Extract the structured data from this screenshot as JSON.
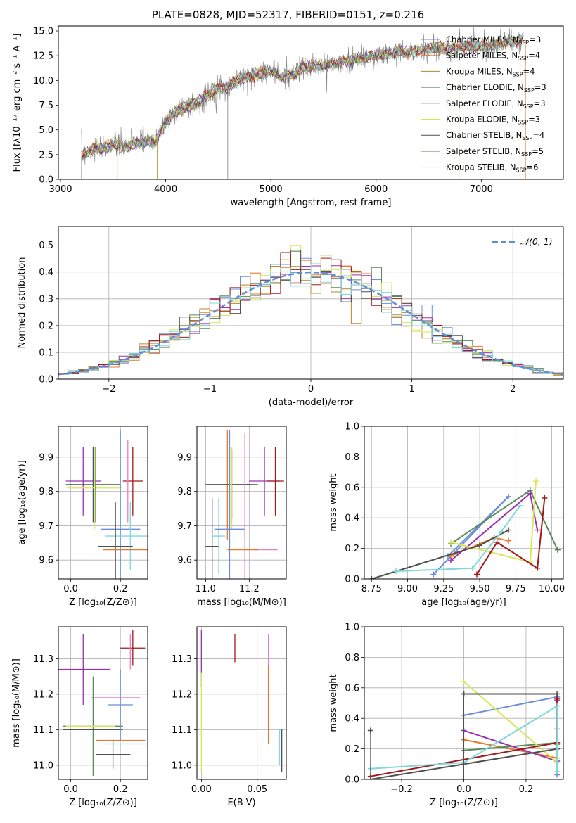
{
  "figure_title": "PLATE=0828, MJD=52317, FIBERID=0151, z=0.216",
  "colors": {
    "grid": "#b0b0b0",
    "normal_curve": "#5b8ed6",
    "chabrier_miles": "#6a8fd8",
    "salpeter_miles": "#e87830",
    "kroupa_miles": "#b08a2a",
    "chabrier_elodie": "#5a8a5a",
    "salpeter_elodie": "#9a30b0",
    "kroupa_elodie": "#d6e85a",
    "chabrier_stelib": "#505050",
    "salpeter_stelib": "#a01818",
    "kroupa_stelib": "#80d8d8",
    "pink": "#e880c0"
  },
  "chart_data": [
    {
      "id": "spectrum",
      "type": "line",
      "title": "PLATE=0828, MJD=52317, FIBERID=0151, z=0.216",
      "xlabel": "wavelength [Angstrom, rest frame]",
      "ylabel": "Flux [fλ10⁻¹⁷ erg cm⁻² s⁻¹ A⁻¹]",
      "xlim": [
        2980,
        7780
      ],
      "ylim": [
        0,
        15.5
      ],
      "xticks": [
        3000,
        4000,
        5000,
        6000,
        7000
      ],
      "yticks": [
        0.0,
        2.5,
        5.0,
        7.5,
        10.0,
        12.5,
        15.0
      ],
      "grid": false,
      "legend_position": "top-right",
      "legend": [
        "Chabrier MILES, N_SSP=3",
        "Salpeter MILES, N_SSP=4",
        "Kroupa MILES, N_SSP=4",
        "Chabrier ELODIE, N_SSP=3",
        "Salpeter ELODIE, N_SSP=3",
        "Kroupa ELODIE, N_SSP=3",
        "Chabrier STELIB, N_SSP=4",
        "Salpeter STELIB, N_SSP=5",
        "Kroupa STELIB, N_SSP=6"
      ],
      "continuum": {
        "x": [
          3200,
          3300,
          3400,
          3500,
          3600,
          3700,
          3800,
          3900,
          4000,
          4100,
          4200,
          4300,
          4400,
          4500,
          4600,
          4700,
          4800,
          4900,
          5000,
          5100,
          5200,
          5300,
          5400,
          5500,
          5600,
          5700,
          5800,
          5900,
          6000,
          6100,
          6200,
          6300,
          6400,
          6500,
          6600,
          6700,
          6800,
          6900,
          7000,
          7100,
          7200,
          7300,
          7400
        ],
        "y": [
          2.4,
          3.0,
          3.2,
          3.5,
          3.3,
          3.6,
          3.8,
          3.7,
          5.8,
          6.9,
          7.4,
          7.7,
          8.6,
          9.2,
          9.4,
          10.2,
          10.4,
          10.7,
          11.0,
          10.3,
          10.6,
          11.2,
          11.4,
          11.5,
          11.7,
          11.9,
          12.1,
          12.3,
          12.5,
          12.6,
          12.9,
          12.8,
          13.0,
          13.2,
          13.3,
          13.1,
          13.4,
          13.5,
          13.3,
          13.6,
          13.8,
          13.9,
          14.1
        ]
      }
    },
    {
      "id": "residuals",
      "type": "line",
      "xlabel": "(data-model)/error",
      "ylabel": "Normed distribution",
      "xlim": [
        -2.5,
        2.5
      ],
      "ylim": [
        0,
        0.57
      ],
      "xticks": [
        -2,
        -1,
        0,
        1,
        2
      ],
      "yticks": [
        0.0,
        0.1,
        0.2,
        0.3,
        0.4,
        0.5
      ],
      "grid": true,
      "legend_position": "top-right",
      "legend": [
        "𝒩(0, 1)"
      ],
      "normal": {
        "mu": 0,
        "sigma": 1
      }
    },
    {
      "id": "age_vs_Z",
      "type": "scatter",
      "xlabel": "Z [log₁₀(Z/Z⊙)]",
      "ylabel": "age  [log₁₀(age/yr)]",
      "xlim": [
        -0.05,
        0.31
      ],
      "ylim": [
        9.545,
        9.99
      ],
      "xticks": [
        0.0,
        0.2
      ],
      "yticks": [
        9.6,
        9.7,
        9.8,
        9.9
      ],
      "grid": true,
      "points": [
        {
          "x": 0.05,
          "y": 9.83,
          "xerr": 0.07,
          "yerr": 0.1,
          "c": "salpeter_elodie"
        },
        {
          "x": 0.09,
          "y": 9.82,
          "xerr": 0.11,
          "yerr": 0.11,
          "c": "chabrier_stelib"
        },
        {
          "x": 0.095,
          "y": 9.81,
          "xerr": 0.11,
          "yerr": 0.12,
          "c": "kroupa_elodie"
        },
        {
          "x": 0.1,
          "y": 9.82,
          "xerr": 0.0,
          "yerr": 0.11,
          "c": "chabrier_elodie"
        },
        {
          "x": 0.25,
          "y": 9.83,
          "xerr": 0.04,
          "yerr": 0.1,
          "c": "salpeter_stelib"
        },
        {
          "x": 0.23,
          "y": 9.83,
          "xerr": 0.0,
          "yerr": 0.12,
          "c": "pink"
        },
        {
          "x": 0.2,
          "y": 9.69,
          "xerr": 0.08,
          "yerr": 0.29,
          "c": "chabrier_miles"
        },
        {
          "x": 0.24,
          "y": 9.67,
          "xerr": 0.1,
          "yerr": 0.1,
          "c": "kroupa_stelib"
        },
        {
          "x": 0.18,
          "y": 9.64,
          "xerr": 0.07,
          "yerr": 0.13,
          "c": "chabrier_stelib"
        },
        {
          "x": 0.22,
          "y": 9.63,
          "xerr": 0.09,
          "yerr": 0.0,
          "c": "salpeter_miles"
        }
      ]
    },
    {
      "id": "age_vs_mass",
      "type": "scatter",
      "xlabel": "mass [log₁₀(M/M⊙)]",
      "ylabel": "",
      "xlim": [
        10.96,
        11.37
      ],
      "ylim": [
        9.545,
        9.99
      ],
      "xticks": [
        11.0,
        11.2
      ],
      "yticks": [
        9.6,
        9.7,
        9.8,
        9.9
      ],
      "grid": true,
      "points": [
        {
          "x": 11.03,
          "y": 9.64,
          "xerr": 0.03,
          "yerr": 0.14,
          "c": "chabrier_stelib"
        },
        {
          "x": 11.06,
          "y": 9.67,
          "xerr": 0.03,
          "yerr": 0.11,
          "c": "kroupa_stelib"
        },
        {
          "x": 11.1,
          "y": 9.82,
          "xerr": 0.1,
          "yerr": 0.16,
          "c": "salpeter_miles"
        },
        {
          "x": 11.11,
          "y": 9.82,
          "xerr": 0.1,
          "yerr": 0.11,
          "c": "chabrier_elodie"
        },
        {
          "x": 11.12,
          "y": 9.82,
          "xerr": 0.12,
          "yerr": 0.1,
          "c": "chabrier_stelib"
        },
        {
          "x": 11.12,
          "y": 9.81,
          "xerr": 0.0,
          "yerr": 0.12,
          "c": "kroupa_elodie"
        },
        {
          "x": 11.11,
          "y": 9.69,
          "xerr": 0.07,
          "yerr": 0.29,
          "c": "chabrier_miles"
        },
        {
          "x": 11.18,
          "y": 9.69,
          "xerr": 0.0,
          "yerr": 0.28,
          "c": "pink"
        },
        {
          "x": 11.27,
          "y": 9.83,
          "xerr": 0.07,
          "yerr": 0.1,
          "c": "salpeter_elodie"
        },
        {
          "x": 11.32,
          "y": 9.83,
          "xerr": 0.04,
          "yerr": 0.1,
          "c": "salpeter_stelib"
        },
        {
          "x": 11.28,
          "y": 9.63,
          "xerr": 0.05,
          "yerr": 0.0,
          "c": "pink"
        },
        {
          "x": 11.17,
          "y": 9.63,
          "xerr": 0.07,
          "yerr": 0.0,
          "c": "salpeter_miles"
        }
      ]
    },
    {
      "id": "weight_vs_age",
      "type": "line",
      "xlabel": "age  [log₁₀(age/yr)]",
      "ylabel": "mass weight",
      "xlim": [
        8.7,
        10.08
      ],
      "ylim": [
        0,
        1
      ],
      "xticks": [
        8.75,
        9.0,
        9.25,
        9.5,
        9.75,
        10.0
      ],
      "yticks": [
        0.0,
        0.2,
        0.4,
        0.6,
        0.8,
        1.0
      ],
      "grid": true,
      "series": [
        {
          "c": "chabrier_miles",
          "x": [
            9.18,
            9.7,
            9.28
          ],
          "y": [
            0.03,
            0.54,
            0.15
          ]
        },
        {
          "c": "salpeter_miles",
          "x": [
            9.3,
            9.6,
            9.7
          ],
          "y": [
            0.15,
            0.27,
            0.25
          ]
        },
        {
          "c": "chabrier_elodie",
          "x": [
            9.3,
            9.85,
            10.04
          ],
          "y": [
            0.23,
            0.58,
            0.19
          ]
        },
        {
          "c": "salpeter_elodie",
          "x": [
            9.3,
            9.85,
            9.9
          ],
          "y": [
            0.12,
            0.56,
            0.32
          ]
        },
        {
          "c": "kroupa_elodie",
          "x": [
            9.3,
            9.85,
            9.89
          ],
          "y": [
            0.24,
            0.11,
            0.64
          ]
        },
        {
          "c": "chabrier_stelib",
          "x": [
            8.75,
            9.5,
            9.7
          ],
          "y": [
            0.0,
            0.22,
            0.32
          ]
        },
        {
          "c": "salpeter_stelib",
          "x": [
            9.48,
            9.62,
            9.9,
            9.95
          ],
          "y": [
            0.03,
            0.24,
            0.07,
            0.53
          ]
        },
        {
          "c": "kroupa_stelib",
          "x": [
            8.92,
            9.45,
            9.65,
            9.78
          ],
          "y": [
            0.05,
            0.07,
            0.31,
            0.48
          ]
        }
      ]
    },
    {
      "id": "mass_vs_Z",
      "type": "scatter",
      "xlabel": "Z [log₁₀(Z/Z⊙)]",
      "ylabel": "mass [log₁₀(M/M⊙)]",
      "xlim": [
        -0.05,
        0.31
      ],
      "ylim": [
        10.96,
        11.39
      ],
      "xticks": [
        0.0,
        0.2
      ],
      "yticks": [
        11.0,
        11.1,
        11.2,
        11.3
      ],
      "grid": true,
      "points": [
        {
          "x": 0.05,
          "y": 11.27,
          "xerr": 0.11,
          "yerr": 0.1,
          "c": "salpeter_elodie"
        },
        {
          "x": 0.25,
          "y": 11.33,
          "xerr": 0.05,
          "yerr": 0.05,
          "c": "salpeter_stelib"
        },
        {
          "x": 0.24,
          "y": 11.32,
          "xerr": 0.0,
          "yerr": 0.05,
          "c": "pink"
        },
        {
          "x": 0.18,
          "y": 11.19,
          "xerr": 0.1,
          "yerr": 0.0,
          "c": "pink"
        },
        {
          "x": 0.09,
          "y": 11.11,
          "xerr": 0.12,
          "yerr": 0.14,
          "c": "chabrier_elodie"
        },
        {
          "x": 0.08,
          "y": 11.11,
          "xerr": 0.1,
          "yerr": 0.0,
          "c": "kroupa_elodie"
        },
        {
          "x": 0.09,
          "y": 11.1,
          "xerr": 0.12,
          "yerr": 0.0,
          "c": "chabrier_stelib"
        },
        {
          "x": 0.2,
          "y": 11.17,
          "xerr": 0.05,
          "yerr": 0.1,
          "c": "chabrier_miles"
        },
        {
          "x": 0.2,
          "y": 11.07,
          "xerr": 0.1,
          "yerr": 0.0,
          "c": "salpeter_miles"
        },
        {
          "x": 0.22,
          "y": 11.06,
          "xerr": 0.1,
          "yerr": 0.0,
          "c": "kroupa_stelib"
        },
        {
          "x": 0.17,
          "y": 11.03,
          "xerr": 0.07,
          "yerr": 0.04,
          "c": "chabrier_stelib"
        }
      ]
    },
    {
      "id": "mass_vs_ebv",
      "type": "scatter",
      "xlabel": "E(B-V)",
      "ylabel": "",
      "xlim": [
        -0.004,
        0.076
      ],
      "ylim": [
        10.96,
        11.39
      ],
      "xticks": [
        0.0,
        0.05
      ],
      "yticks": [
        11.0,
        11.1,
        11.2,
        11.3
      ],
      "grid": true,
      "points": [
        {
          "x": 0.0,
          "y": 11.3,
          "xerr": 0.0,
          "yerr": 0.08,
          "c": "salpeter_elodie"
        },
        {
          "x": 0.0,
          "y": 11.12,
          "xerr": 0.0,
          "yerr": 0.14,
          "c": "kroupa_elodie"
        },
        {
          "x": 0.03,
          "y": 11.33,
          "xerr": 0.0,
          "yerr": 0.04,
          "c": "salpeter_stelib"
        },
        {
          "x": 0.06,
          "y": 11.32,
          "xerr": 0.0,
          "yerr": 0.05,
          "c": "pink"
        },
        {
          "x": 0.06,
          "y": 11.17,
          "xerr": 0.0,
          "yerr": 0.11,
          "c": "salpeter_miles"
        },
        {
          "x": 0.07,
          "y": 11.05,
          "xerr": 0.0,
          "yerr": 0.05,
          "c": "kroupa_stelib"
        },
        {
          "x": 0.072,
          "y": 11.04,
          "xerr": 0.0,
          "yerr": 0.06,
          "c": "chabrier_stelib"
        }
      ]
    },
    {
      "id": "weight_vs_Z",
      "type": "line",
      "xlabel": "Z [log₁₀(Z/Z⊙)]",
      "ylabel": "mass weight",
      "xlim": [
        -0.32,
        0.32
      ],
      "ylim": [
        0,
        1
      ],
      "xticks": [
        -0.2,
        0.0,
        0.2
      ],
      "yticks": [
        0.0,
        0.2,
        0.4,
        0.6,
        0.8,
        1.0
      ],
      "grid": true,
      "series": [
        {
          "c": "chabrier_miles",
          "x": [
            0.0,
            0.3,
            0.3
          ],
          "y": [
            0.42,
            0.54,
            0.03
          ]
        },
        {
          "c": "salpeter_miles",
          "x": [
            0.0,
            0.3,
            0.3
          ],
          "y": [
            0.26,
            0.14,
            0.33
          ]
        },
        {
          "c": "chabrier_elodie",
          "x": [
            0.0,
            0.3,
            0.3
          ],
          "y": [
            0.19,
            0.24,
            0.23
          ]
        },
        {
          "c": "salpeter_elodie",
          "x": [
            0.0,
            0.3,
            0.3
          ],
          "y": [
            0.32,
            0.12,
            0.52
          ]
        },
        {
          "c": "kroupa_elodie",
          "x": [
            0.0,
            0.3,
            0.3
          ],
          "y": [
            0.64,
            0.11,
            0.24
          ]
        },
        {
          "c": "chabrier_stelib",
          "x": [
            -0.3,
            0.3,
            0.3,
            0.0
          ],
          "y": [
            0.0,
            0.2,
            0.56,
            0.56
          ]
        },
        {
          "c": "salpeter_stelib",
          "x": [
            -0.3,
            0.3,
            0.3
          ],
          "y": [
            0.02,
            0.24,
            0.53
          ]
        },
        {
          "c": "kroupa_stelib",
          "x": [
            -0.3,
            0.0,
            0.3,
            0.3
          ],
          "y": [
            0.07,
            0.11,
            0.48,
            0.05
          ]
        }
      ],
      "markers": [
        {
          "x": -0.3,
          "y": 0.32,
          "c": "chabrier_stelib"
        },
        {
          "x": 0.0,
          "y": 0.56,
          "c": "chabrier_stelib"
        }
      ]
    }
  ]
}
